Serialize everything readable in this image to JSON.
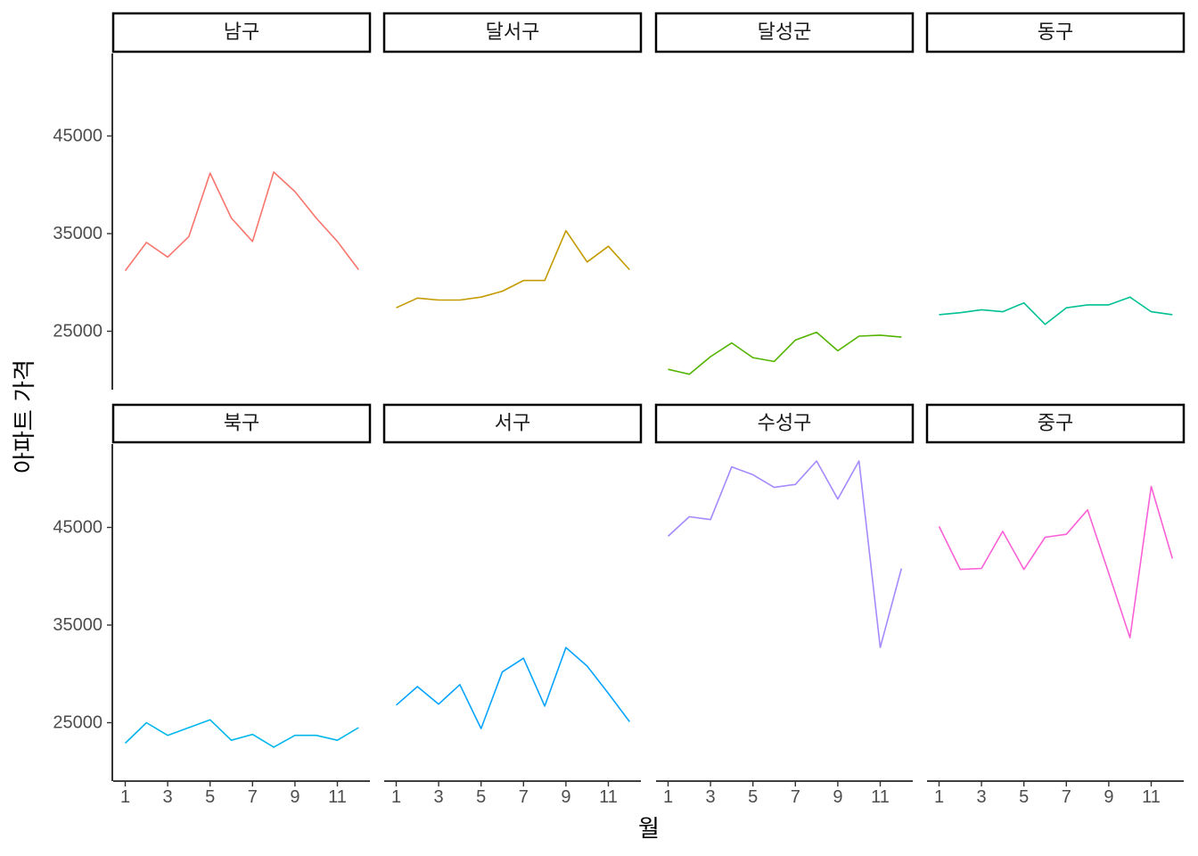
{
  "chart_data": {
    "type": "line",
    "facet_layout": "2 rows x 4 columns",
    "xlabel": "월",
    "ylabel": "아파트 가격",
    "x": [
      1,
      2,
      3,
      4,
      5,
      6,
      7,
      8,
      9,
      10,
      11,
      12
    ],
    "xticks": [
      1,
      3,
      5,
      7,
      9,
      11
    ],
    "yticks": [
      25000,
      35000,
      45000
    ],
    "ylim_by_row": [
      [
        19500,
        53500
      ],
      [
        19000,
        54000
      ]
    ],
    "grid": false,
    "legend": "none",
    "panels": [
      {
        "name": "남구",
        "color": "#F8766D",
        "values": [
          31200,
          34100,
          32600,
          34700,
          41200,
          36600,
          34200,
          41300,
          39300,
          36600,
          34200,
          31300
        ]
      },
      {
        "name": "달서구",
        "color": "#C49A00",
        "values": [
          27400,
          28400,
          28200,
          28200,
          28500,
          29100,
          30200,
          30200,
          35300,
          32100,
          33700,
          31300
        ]
      },
      {
        "name": "달성군",
        "color": "#53B400",
        "values": [
          21100,
          20600,
          22400,
          23800,
          22300,
          21900,
          24100,
          24900,
          23000,
          24500,
          24600,
          24400
        ]
      },
      {
        "name": "동구",
        "color": "#00C094",
        "values": [
          26700,
          26900,
          27200,
          27000,
          27900,
          25700,
          27400,
          27700,
          27700,
          28500,
          27000,
          26700
        ]
      },
      {
        "name": "북구",
        "color": "#00B6EB",
        "values": [
          22900,
          25000,
          23700,
          24500,
          25300,
          23200,
          23800,
          22500,
          23700,
          23700,
          23200,
          24500
        ]
      },
      {
        "name": "서구",
        "color": "#06A4FF",
        "values": [
          26800,
          28700,
          26900,
          28900,
          24400,
          30200,
          31600,
          26700,
          32700,
          30800,
          28000,
          25100
        ]
      },
      {
        "name": "수성구",
        "color": "#A58AFF",
        "values": [
          44100,
          46100,
          45800,
          51200,
          50400,
          49100,
          49400,
          51800,
          47900,
          51800,
          32700,
          40800
        ]
      },
      {
        "name": "중구",
        "color": "#FB61D7",
        "values": [
          45100,
          40700,
          40800,
          44600,
          40700,
          44000,
          44300,
          46800,
          40300,
          33700,
          49200,
          41800
        ]
      }
    ]
  }
}
